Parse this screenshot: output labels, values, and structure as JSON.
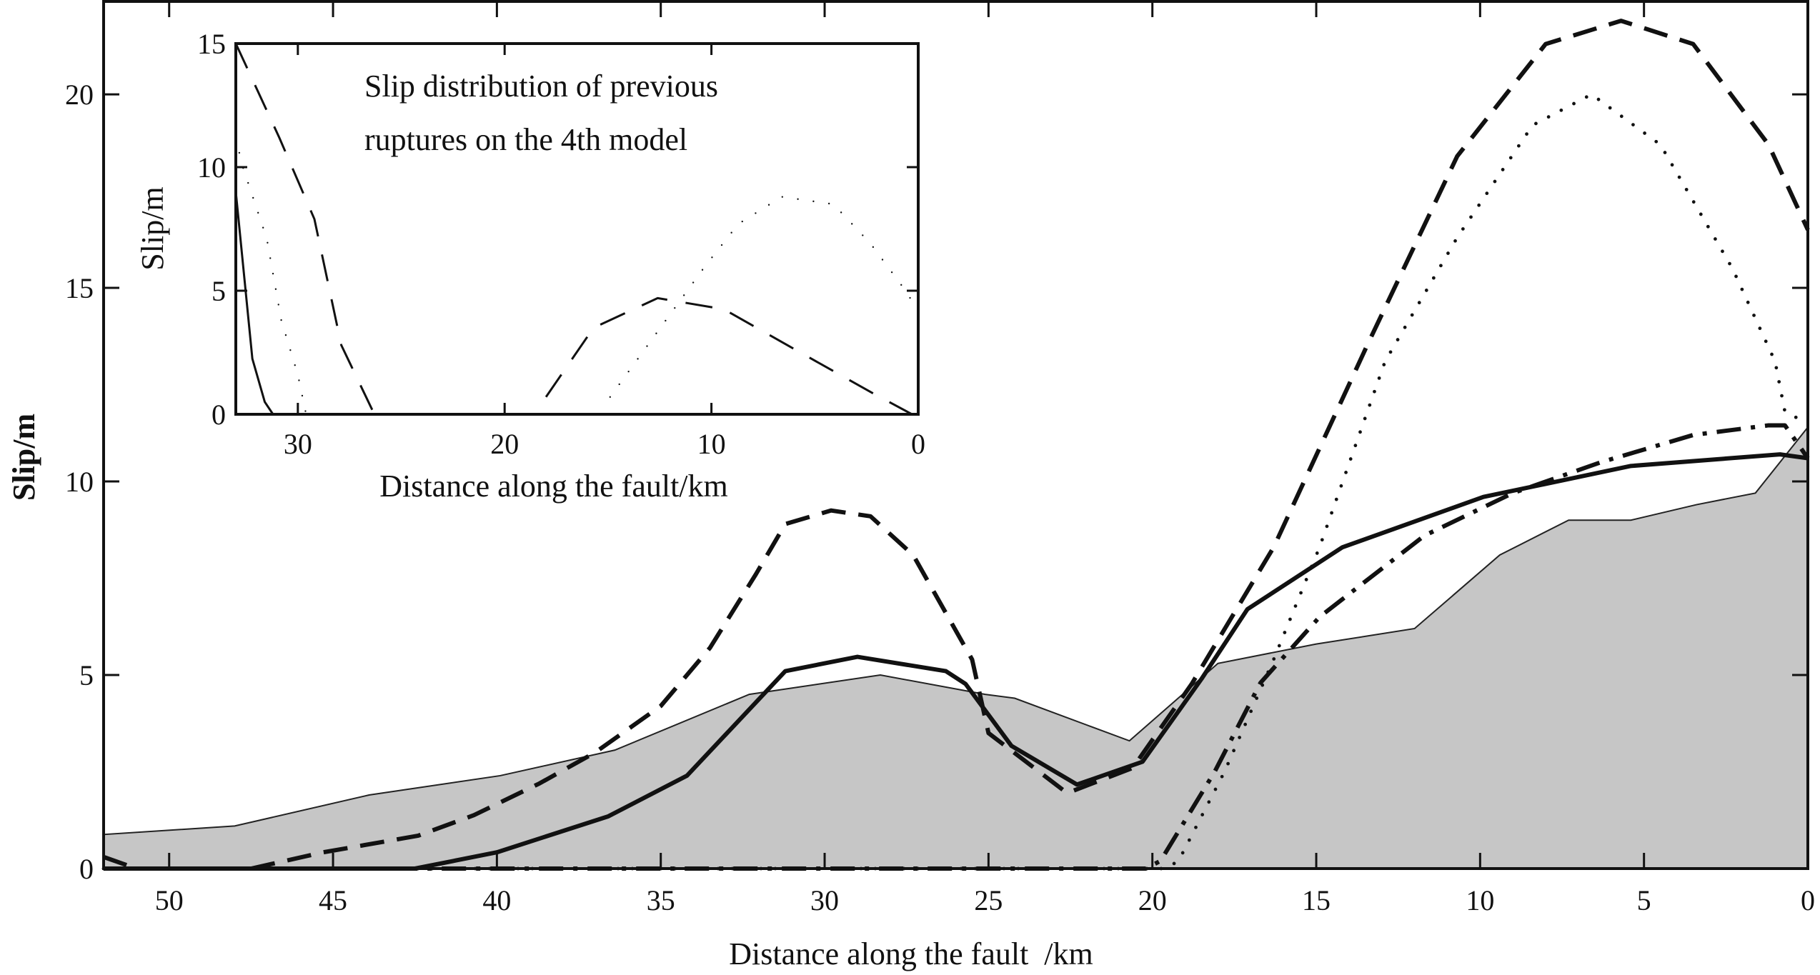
{
  "chart_data": [
    {
      "type": "line",
      "panel": "main",
      "xlabel": "Distance along the fault  /km",
      "ylabel": "Slip/m",
      "xlim": [
        52,
        0
      ],
      "ylim": [
        0,
        22.4
      ],
      "x_reversed": true,
      "xticks": [
        50,
        45,
        40,
        35,
        30,
        25,
        20,
        15,
        10,
        5,
        0
      ],
      "yticks": [
        0,
        5,
        10,
        15,
        20
      ],
      "grid": false,
      "shaded_area": {
        "color": "#c6c6c6",
        "x": [
          52,
          48,
          43.9,
          39.9,
          36.4,
          32.3,
          28.3,
          25.1,
          24.2,
          20.7,
          18.0,
          15.0,
          12.0,
          9.4,
          7.3,
          5.4,
          3.4,
          1.6,
          0
        ],
        "y": [
          0.88,
          1.1,
          1.9,
          2.4,
          3.06,
          4.5,
          5.0,
          4.5,
          4.4,
          3.3,
          5.3,
          5.8,
          6.2,
          8.1,
          9.0,
          9.0,
          9.4,
          9.7,
          11.4
        ]
      },
      "series": [
        {
          "style": "solid",
          "x": [
            52,
            42.5,
            40.0,
            36.6,
            34.2,
            31.2,
            29.0,
            26.3,
            25.7,
            24.3,
            22.3,
            20.3,
            18.5,
            17.1,
            14.2,
            9.9,
            5.4,
            0.85,
            0
          ],
          "y": [
            0,
            0,
            0.42,
            1.35,
            2.4,
            5.1,
            5.47,
            5.1,
            4.77,
            3.17,
            2.17,
            2.76,
            4.9,
            6.7,
            8.3,
            9.6,
            10.4,
            10.7,
            10.6
          ]
        },
        {
          "style": "dashed",
          "x": [
            47.5,
            45.3,
            42.4,
            40.7,
            38.7,
            37.0,
            35.0,
            33.5,
            32.1,
            31.2,
            29.8,
            28.6,
            27.3,
            26.3,
            25.5,
            25.0,
            22.6,
            20.6,
            18.8,
            16.3,
            13.4,
            10.7,
            8.0,
            5.7,
            3.5,
            1.2,
            0
          ],
          "y": [
            0,
            0.42,
            0.85,
            1.38,
            2.2,
            3.0,
            4.2,
            5.7,
            7.6,
            8.9,
            9.25,
            9.1,
            8.1,
            6.6,
            5.4,
            3.5,
            1.95,
            2.6,
            4.77,
            8.3,
            13.6,
            18.4,
            21.3,
            21.9,
            21.3,
            18.7,
            16.5
          ]
        },
        {
          "style": "dotted",
          "x": [
            52,
            19.6,
            19.2,
            17.8,
            16.3,
            14.9,
            12.9,
            10.7,
            8.4,
            6.6,
            4.5,
            2.3,
            1.0,
            0.7,
            0
          ],
          "y": [
            0,
            0,
            0.2,
            2.5,
            5.4,
            8.3,
            13.1,
            16.3,
            19.2,
            20.0,
            18.7,
            15.5,
            13.1,
            11.8,
            11.5
          ]
        },
        {
          "style": "dashdot",
          "x": [
            52,
            51,
            20.2,
            19.75,
            18.1,
            16.7,
            14.9,
            11.7,
            9.0,
            6.3,
            3.5,
            1.2,
            0.7,
            0
          ],
          "y": [
            0.3,
            0,
            0,
            0.2,
            2.5,
            4.8,
            6.5,
            8.6,
            9.7,
            10.5,
            11.2,
            11.45,
            11.45,
            10.6
          ]
        }
      ]
    },
    {
      "type": "line",
      "panel": "inset",
      "title": "Slip distribution of previous ruptures on the 4th model",
      "title_lines": [
        "Slip distribution of previous",
        "ruptures on the 4th model"
      ],
      "xlabel": "Distance along the fault/km",
      "ylabel": "Slip/m",
      "xlim": [
        33,
        0
      ],
      "ylim": [
        0,
        15
      ],
      "x_reversed": true,
      "xticks": [
        30,
        20,
        10,
        0
      ],
      "yticks": [
        0,
        5,
        10,
        15
      ],
      "grid": false,
      "series": [
        {
          "style": "solid",
          "x": [
            33,
            32.2,
            31.6,
            31.2
          ],
          "y": [
            9.0,
            2.25,
            0.5,
            0
          ]
        },
        {
          "style": "dotted",
          "x": [
            33,
            32.7,
            31.5,
            30.8,
            30.0,
            29.6
          ],
          "y": [
            11.2,
            10.1,
            7.1,
            3.8,
            1.6,
            0
          ]
        },
        {
          "style": "dashed",
          "x": [
            33,
            30.9,
            29.2,
            27.9,
            26.3
          ],
          "y": [
            15,
            11.2,
            7.9,
            2.8,
            0
          ]
        },
        {
          "style": "dashed",
          "x": [
            18.0,
            15.7,
            12.6,
            9.4,
            5.7,
            2.3,
            0.3
          ],
          "y": [
            0.7,
            3.5,
            4.7,
            4.25,
            2.5,
            0.9,
            0
          ]
        },
        {
          "style": "dotted",
          "x": [
            14.9,
            12.6,
            10.3,
            8.7,
            6.6,
            4.1,
            2.3,
            0.7,
            0
          ],
          "y": [
            0.7,
            3.35,
            6.0,
            7.7,
            8.8,
            8.5,
            6.9,
            5.1,
            4.2
          ]
        }
      ]
    }
  ]
}
